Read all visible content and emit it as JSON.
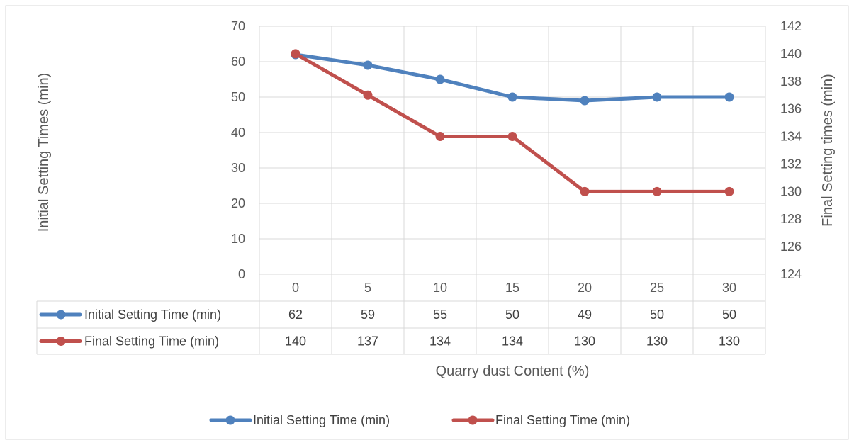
{
  "chart_data": {
    "type": "line",
    "x": [
      "0",
      "5",
      "10",
      "15",
      "20",
      "25",
      "30"
    ],
    "xlabel": "Quarry dust Content (%)",
    "ylabel_left": "Initial Setting Times (min)",
    "ylabel_right": "Final Setting times (min)",
    "ylim_left": [
      0,
      70
    ],
    "yticks_left": [
      "0",
      "10",
      "20",
      "30",
      "40",
      "50",
      "60",
      "70"
    ],
    "ylim_right": [
      124,
      142
    ],
    "yticks_right": [
      "124",
      "126",
      "128",
      "130",
      "132",
      "134",
      "136",
      "138",
      "140",
      "142"
    ],
    "grid": true,
    "legend_position": "bottom",
    "data_table": true,
    "series": [
      {
        "name": "Initial Setting Time (min)",
        "axis": "left",
        "color": "#4f81bd",
        "values": [
          62,
          59,
          55,
          50,
          49,
          50,
          50
        ]
      },
      {
        "name": "Final Setting Time (min)",
        "axis": "right",
        "color": "#c0504d",
        "values": [
          140,
          137,
          134,
          134,
          130,
          130,
          130
        ]
      }
    ]
  }
}
